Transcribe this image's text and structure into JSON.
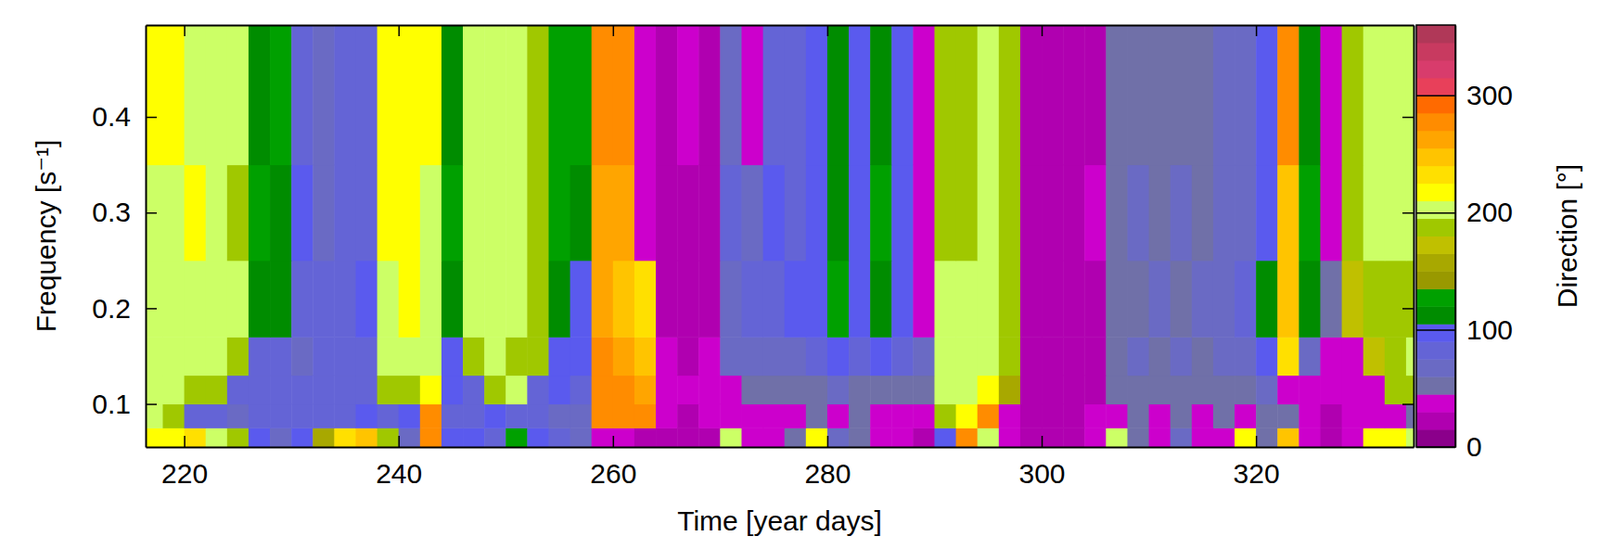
{
  "chart_data": {
    "type": "heatmap",
    "x_label": "Time [year days]",
    "y_label": "Frequency [s⁻¹]",
    "xlim": [
      216.4,
      334.7
    ],
    "ylim": [
      0.055,
      0.496
    ],
    "xticks": [
      220,
      240,
      260,
      280,
      300,
      320
    ],
    "yticks": [
      0.1,
      0.2,
      0.3,
      0.4
    ],
    "x_bins": [
      216,
      218,
      220,
      222,
      224,
      226,
      228,
      230,
      232,
      234,
      236,
      238,
      240,
      242,
      244,
      246,
      248,
      250,
      252,
      254,
      256,
      258,
      260,
      262,
      264,
      266,
      268,
      270,
      272,
      274,
      276,
      278,
      280,
      282,
      284,
      286,
      288,
      290,
      292,
      294,
      296,
      298,
      300,
      302,
      304,
      306,
      308,
      310,
      312,
      314,
      316,
      318,
      320,
      322,
      324,
      326,
      328,
      330,
      332,
      334,
      336
    ],
    "y_bins": [
      0.055,
      0.075,
      0.1,
      0.13,
      0.17,
      0.25,
      0.35,
      0.496
    ],
    "cells": [
      [
        220,
        210,
        230,
        200,
        180,
        90,
        60,
        100,
        150,
        230,
        240,
        180,
        70,
        270,
        90,
        100,
        80,
        120,
        90,
        80,
        60,
        40,
        30,
        20,
        20,
        25,
        20,
        200,
        40,
        30,
        50,
        210,
        60,
        50,
        40,
        30,
        20,
        100,
        280,
        200,
        30,
        20,
        15,
        20,
        40,
        200,
        50,
        30,
        60,
        40,
        30,
        220,
        50,
        240,
        30,
        20,
        40,
        220,
        210,
        200
      ],
      [
        200,
        190,
        80,
        75,
        70,
        75,
        80,
        75,
        80,
        85,
        90,
        85,
        90,
        270,
        80,
        85,
        90,
        80,
        75,
        70,
        60,
        270,
        275,
        280,
        30,
        20,
        40,
        30,
        40,
        35,
        40,
        45,
        40,
        45,
        40,
        35,
        40,
        190,
        210,
        280,
        30,
        20,
        15,
        25,
        30,
        40,
        45,
        40,
        45,
        40,
        45,
        40,
        50,
        45,
        35,
        25,
        30,
        35,
        40,
        45
      ],
      [
        195,
        195,
        190,
        185,
        80,
        80,
        75,
        80,
        75,
        80,
        85,
        180,
        190,
        210,
        90,
        80,
        190,
        200,
        80,
        90,
        80,
        280,
        270,
        265,
        40,
        30,
        35,
        40,
        45,
        45,
        50,
        55,
        60,
        50,
        55,
        50,
        45,
        195,
        200,
        210,
        160,
        15,
        20,
        20,
        25,
        45,
        50,
        45,
        50,
        45,
        50,
        55,
        60,
        40,
        40,
        30,
        35,
        40,
        180,
        190
      ],
      [
        195,
        200,
        200,
        195,
        190,
        85,
        80,
        70,
        75,
        80,
        80,
        200,
        205,
        200,
        100,
        190,
        195,
        190,
        180,
        100,
        90,
        270,
        260,
        240,
        30,
        25,
        30,
        60,
        60,
        70,
        70,
        80,
        90,
        80,
        90,
        80,
        60,
        200,
        195,
        200,
        180,
        20,
        15,
        25,
        20,
        50,
        60,
        55,
        60,
        55,
        60,
        65,
        90,
        230,
        60,
        35,
        30,
        170,
        190,
        195
      ],
      [
        200,
        205,
        200,
        200,
        195,
        115,
        110,
        85,
        80,
        85,
        90,
        205,
        210,
        200,
        110,
        195,
        200,
        195,
        190,
        110,
        100,
        265,
        250,
        230,
        25,
        20,
        25,
        70,
        80,
        85,
        90,
        100,
        120,
        95,
        110,
        100,
        40,
        195,
        200,
        195,
        190,
        25,
        20,
        15,
        25,
        55,
        55,
        60,
        55,
        60,
        70,
        75,
        110,
        240,
        110,
        45,
        170,
        190,
        185,
        190
      ],
      [
        205,
        200,
        210,
        205,
        190,
        120,
        115,
        90,
        70,
        80,
        85,
        210,
        215,
        205,
        120,
        200,
        205,
        200,
        185,
        120,
        110,
        260,
        265,
        40,
        20,
        25,
        20,
        75,
        70,
        90,
        85,
        95,
        115,
        100,
        120,
        95,
        30,
        185,
        190,
        205,
        185,
        20,
        25,
        20,
        30,
        50,
        60,
        50,
        60,
        55,
        65,
        70,
        100,
        250,
        120,
        40,
        185,
        200,
        195,
        200
      ],
      [
        210,
        215,
        205,
        200,
        200,
        110,
        120,
        80,
        60,
        75,
        80,
        215,
        210,
        210,
        115,
        205,
        200,
        195,
        190,
        130,
        120,
        270,
        275,
        30,
        25,
        30,
        20,
        60,
        40,
        80,
        80,
        90,
        110,
        90,
        115,
        90,
        35,
        190,
        185,
        200,
        180,
        15,
        20,
        25,
        20,
        45,
        55,
        55,
        50,
        50,
        60,
        65,
        95,
        270,
        115,
        30,
        190,
        195,
        200,
        205
      ]
    ],
    "colorbar": {
      "label": "Direction [°]",
      "range": [
        0,
        360
      ],
      "ticks": [
        0,
        100,
        200,
        300
      ]
    }
  }
}
